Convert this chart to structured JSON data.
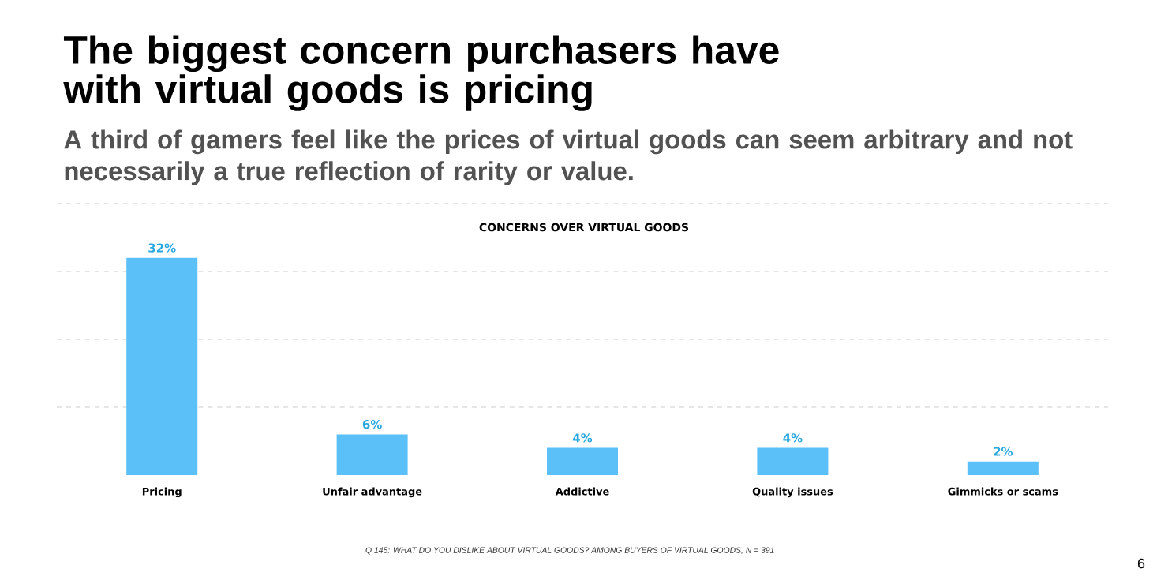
{
  "chart_data": {
    "type": "bar",
    "title": "The biggest concern purchasers have with virtual goods is pricing",
    "subtitle": "A third of gamers feel like the prices of virtual goods can seem arbitrary and not necessarily a true reflection of rarity or value.",
    "categories": [
      "Pricing",
      "Unfair advantage",
      "Addictive",
      "Quality issues",
      "Gimmicks or scams"
    ],
    "values": [
      32,
      6,
      4,
      4,
      2
    ],
    "value_labels": [
      "32%",
      "6%",
      "4%",
      "4%",
      "2%"
    ],
    "color": "#5bbff8",
    "ylim": [
      0,
      40
    ],
    "yticks": [
      {
        "value": 10,
        "label": null
      },
      {
        "value": 20,
        "label": null
      },
      {
        "value": 30,
        "label": null
      },
      {
        "value": 40,
        "label": null
      }
    ],
    "tick_labels": "x",
    "grid": "y",
    "annotations": [
      "CONCERNS OVER VIRTUAL GOODS",
      "Q 145: WHAT DO YOU DISLIKE ABOUT VIRTUAL GOODS? AMONG BUYERS OF VIRTUAL GOODS, N = 391",
      "6"
    ]
  }
}
